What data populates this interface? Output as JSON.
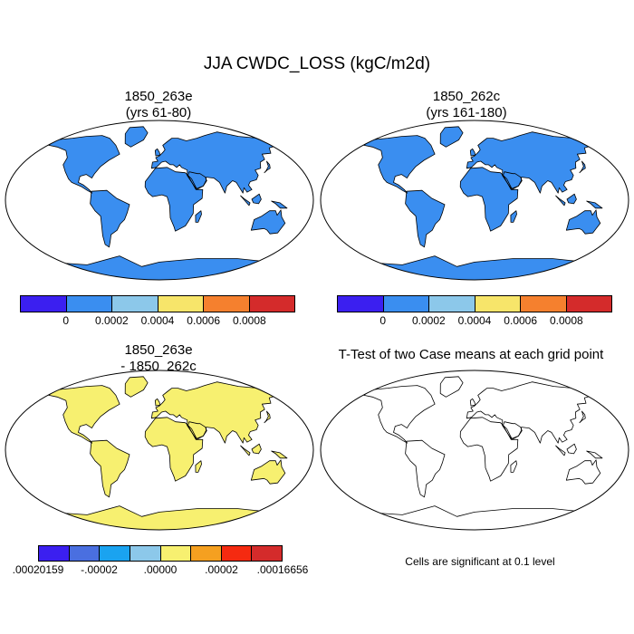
{
  "title": "JJA CWDC_LOSS (kgC/m2d)",
  "panels": {
    "top_left": {
      "line1": "1850_263e",
      "line2": "(yrs 61-80)"
    },
    "top_right": {
      "line1": "1850_262c",
      "line2": "(yrs 161-180)"
    },
    "bottom_left": {
      "line1": "1850_263e",
      "line2": "- 1850_262c"
    },
    "bottom_right": {
      "line1": "T-Test of two Case means at each grid point"
    }
  },
  "colorbar_top": {
    "colors": [
      "#3b1ff0",
      "#3a8ef0",
      "#8cc8ea",
      "#f7e56a",
      "#f5802e",
      "#d42b2b"
    ],
    "ticks": [
      "0",
      "0.0002",
      "0.0004",
      "0.0006",
      "0.0008"
    ]
  },
  "colorbar_bottom": {
    "colors": [
      "#3b1ff0",
      "#4a6fe0",
      "#1aa3f0",
      "#8cc8ea",
      "#f7f070",
      "#f5a020",
      "#f52a10",
      "#d42b2b"
    ],
    "ticks": [
      ".00020159",
      "-.00002",
      ".00000",
      ".00002",
      ".00016656"
    ]
  },
  "significance_note": "Cells are significant at 0.1 level",
  "colors": {
    "ocean": "#ffffff",
    "land_base": "#3a8ef0",
    "significant": "#e00000",
    "diff_land_base": "#f7f070"
  }
}
